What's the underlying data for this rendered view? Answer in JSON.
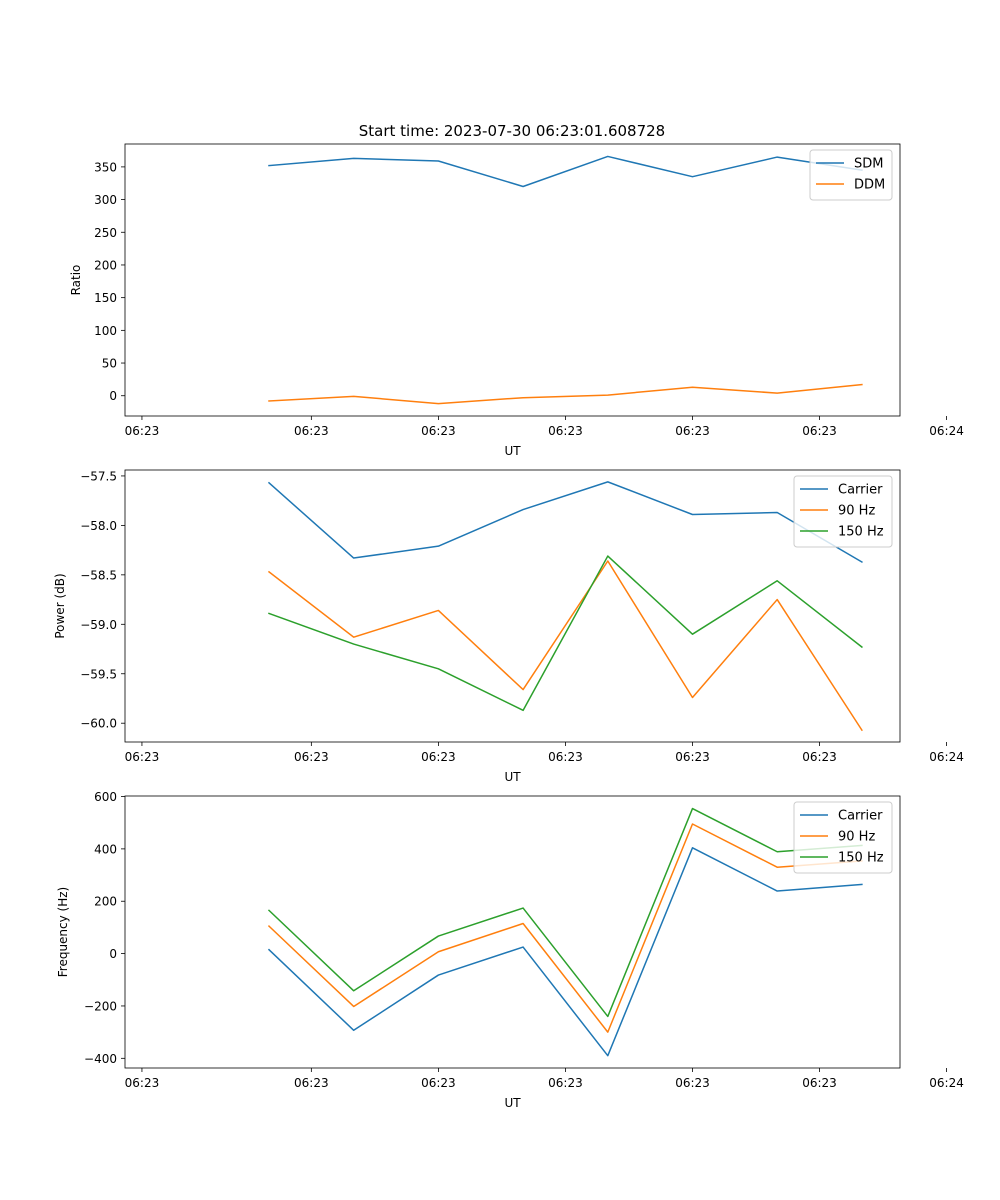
{
  "figure": {
    "title": "Start time: 2023-07-30 06:23:01.608728"
  },
  "colors": {
    "blue": "#1f77b4",
    "orange": "#ff7f0e",
    "green": "#2ca02c"
  },
  "chart_data": [
    {
      "type": "line",
      "title": "Start time: 2023-07-30 06:23:01.608728",
      "xlabel": "UT",
      "ylabel": "Ratio",
      "x": [
        1,
        2,
        3,
        4,
        5,
        6,
        7,
        8
      ],
      "xlim": [
        -0.7,
        8.45
      ],
      "xticks": [
        -0.5,
        1.5,
        3.0,
        4.5,
        6.0,
        7.5,
        9.0
      ],
      "xtick_labels": [
        "06:23",
        "06:23",
        "06:23",
        "06:23",
        "06:23",
        "06:23",
        "06:24"
      ],
      "ylim": [
        -31,
        385
      ],
      "yticks": [
        0,
        50,
        100,
        150,
        200,
        250,
        300,
        350
      ],
      "ytick_labels": [
        "0",
        "50",
        "100",
        "150",
        "200",
        "250",
        "300",
        "350"
      ],
      "legend": "top-right",
      "series": [
        {
          "name": "SDM",
          "color": "#1f77b4",
          "values": [
            352,
            363,
            359,
            320,
            366,
            335,
            365,
            345
          ]
        },
        {
          "name": "DDM",
          "color": "#ff7f0e",
          "values": [
            -8,
            -1,
            -12,
            -3,
            1,
            13,
            4,
            17
          ]
        }
      ]
    },
    {
      "type": "line",
      "xlabel": "UT",
      "ylabel": "Power (dB)",
      "x": [
        1,
        2,
        3,
        4,
        5,
        6,
        7,
        8
      ],
      "xlim": [
        -0.7,
        8.45
      ],
      "xticks": [
        -0.5,
        1.5,
        3.0,
        4.5,
        6.0,
        7.5,
        9.0
      ],
      "xtick_labels": [
        "06:23",
        "06:23",
        "06:23",
        "06:23",
        "06:23",
        "06:23",
        "06:24"
      ],
      "ylim": [
        -60.19,
        -57.44
      ],
      "yticks": [
        -60.0,
        -59.5,
        -59.0,
        -58.5,
        -58.0,
        -57.5
      ],
      "ytick_labels": [
        "−60.0",
        "−59.5",
        "−59.0",
        "−58.5",
        "−58.0",
        "−57.5"
      ],
      "legend": "top-right",
      "series": [
        {
          "name": "Carrier",
          "color": "#1f77b4",
          "values": [
            -57.57,
            -58.33,
            -58.21,
            -57.84,
            -57.56,
            -57.89,
            -57.87,
            -58.37
          ]
        },
        {
          "name": "90 Hz",
          "color": "#ff7f0e",
          "values": [
            -58.47,
            -59.13,
            -58.86,
            -59.66,
            -58.36,
            -59.74,
            -58.75,
            -60.07
          ]
        },
        {
          "name": "150 Hz",
          "color": "#2ca02c",
          "values": [
            -58.89,
            -59.2,
            -59.45,
            -59.87,
            -58.31,
            -59.1,
            -58.56,
            -59.23
          ]
        }
      ]
    },
    {
      "type": "line",
      "xlabel": "UT",
      "ylabel": "Frequency (Hz)",
      "x": [
        1,
        2,
        3,
        4,
        5,
        6,
        7,
        8
      ],
      "xlim": [
        -0.7,
        8.45
      ],
      "xticks": [
        -0.5,
        1.5,
        3.0,
        4.5,
        6.0,
        7.5,
        9.0
      ],
      "xtick_labels": [
        "06:23",
        "06:23",
        "06:23",
        "06:23",
        "06:23",
        "06:23",
        "06:24"
      ],
      "ylim": [
        -437,
        602
      ],
      "yticks": [
        -400,
        -200,
        0,
        200,
        400,
        600
      ],
      "ytick_labels": [
        "−400",
        "−200",
        "0",
        "200",
        "400",
        "600"
      ],
      "legend": "top-right",
      "series": [
        {
          "name": "Carrier",
          "color": "#1f77b4",
          "values": [
            15,
            -293,
            -82,
            25,
            -390,
            404,
            239,
            264
          ]
        },
        {
          "name": "90 Hz",
          "color": "#ff7f0e",
          "values": [
            105,
            -202,
            7,
            115,
            -300,
            495,
            330,
            354
          ]
        },
        {
          "name": "150 Hz",
          "color": "#2ca02c",
          "values": [
            165,
            -142,
            67,
            174,
            -240,
            554,
            389,
            413
          ]
        }
      ]
    }
  ]
}
